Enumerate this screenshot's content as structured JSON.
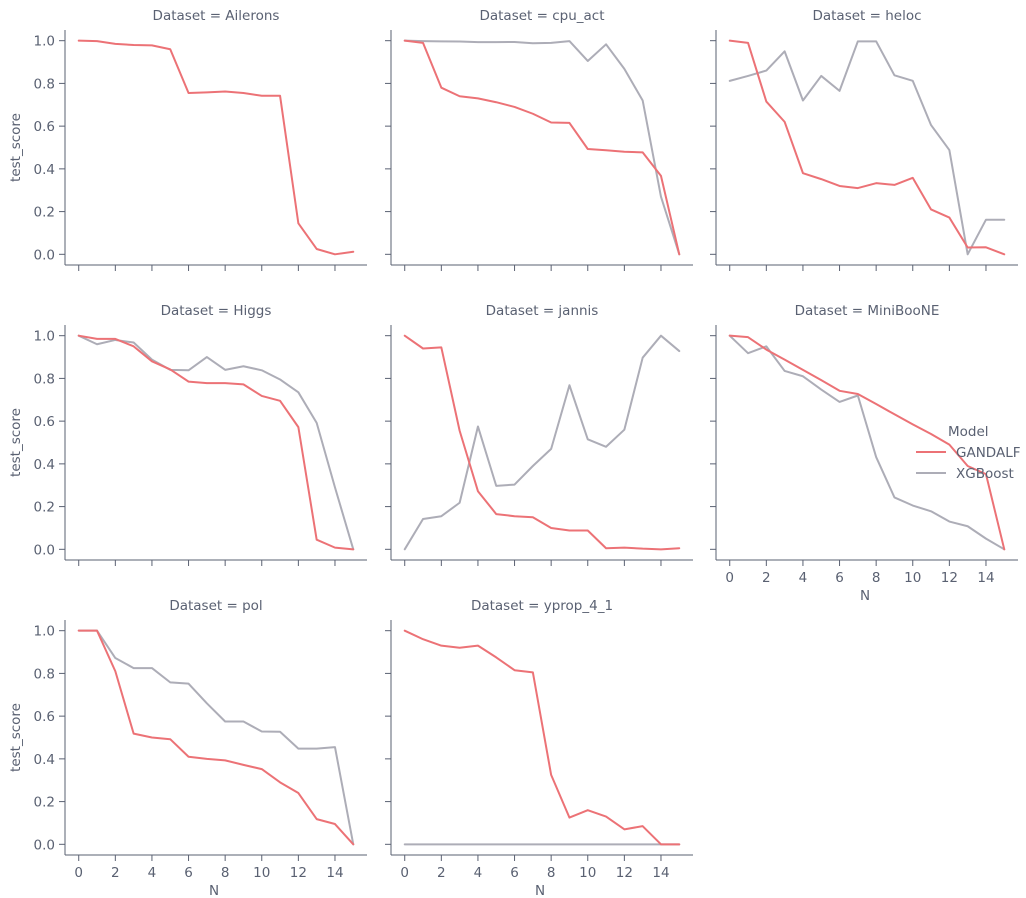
{
  "figure": {
    "legend_title": "Model",
    "legend_placement": "right",
    "colors": {
      "GANDALF": "#ec7276",
      "XGBoost": "#adadb7",
      "axis": "#5a6172"
    }
  },
  "chart_data": {
    "type": "line",
    "facet_by": "Dataset",
    "xlabel": "N",
    "ylabel": "test_score",
    "xlim": [
      -0.75,
      15.75
    ],
    "ylim": [
      -0.05,
      1.05
    ],
    "xticks": [
      "0",
      "2",
      "4",
      "6",
      "8",
      "10",
      "12",
      "14"
    ],
    "yticks": [
      "0.0",
      "0.2",
      "0.4",
      "0.6",
      "0.8",
      "1.0"
    ],
    "x": [
      0,
      1,
      2,
      3,
      4,
      5,
      6,
      7,
      8,
      9,
      10,
      11,
      12,
      13,
      14,
      15
    ],
    "panels": [
      {
        "title": "Dataset = Ailerons",
        "series": [
          {
            "name": "GANDALF",
            "values": [
              1.0,
              0.998,
              0.985,
              0.98,
              0.978,
              0.96,
              0.755,
              0.758,
              0.762,
              0.755,
              0.742,
              0.742,
              0.145,
              0.025,
              0.0,
              0.012
            ]
          }
        ]
      },
      {
        "title": "Dataset = cpu_act",
        "series": [
          {
            "name": "GANDALF",
            "values": [
              1.0,
              0.99,
              0.78,
              0.74,
              0.73,
              0.712,
              0.69,
              0.658,
              0.617,
              0.615,
              0.493,
              0.487,
              0.48,
              0.477,
              0.367,
              0.0
            ]
          },
          {
            "name": "XGBoost",
            "values": [
              1.0,
              0.998,
              0.997,
              0.996,
              0.993,
              0.993,
              0.994,
              0.988,
              0.99,
              0.998,
              0.905,
              0.983,
              0.868,
              0.72,
              0.27,
              0.0
            ]
          }
        ]
      },
      {
        "title": "Dataset = heloc",
        "series": [
          {
            "name": "GANDALF",
            "values": [
              1.0,
              0.99,
              0.715,
              0.62,
              0.38,
              0.352,
              0.32,
              0.31,
              0.333,
              0.325,
              0.358,
              0.21,
              0.172,
              0.032,
              0.033,
              0.0
            ]
          },
          {
            "name": "XGBoost",
            "values": [
              0.812,
              0.835,
              0.86,
              0.95,
              0.72,
              0.835,
              0.765,
              0.997,
              0.997,
              0.838,
              0.812,
              0.605,
              0.488,
              0.0,
              0.162,
              0.162
            ]
          }
        ]
      },
      {
        "title": "Dataset = Higgs",
        "series": [
          {
            "name": "GANDALF",
            "values": [
              1.0,
              0.985,
              0.985,
              0.95,
              0.88,
              0.842,
              0.785,
              0.778,
              0.778,
              0.772,
              0.718,
              0.695,
              0.572,
              0.045,
              0.008,
              0.0
            ]
          },
          {
            "name": "XGBoost",
            "values": [
              1.0,
              0.96,
              0.98,
              0.968,
              0.888,
              0.84,
              0.838,
              0.9,
              0.84,
              0.857,
              0.838,
              0.795,
              0.735,
              0.592,
              0.29,
              0.0
            ]
          }
        ]
      },
      {
        "title": "Dataset = jannis",
        "series": [
          {
            "name": "GANDALF",
            "values": [
              1.0,
              0.94,
              0.945,
              0.555,
              0.272,
              0.165,
              0.155,
              0.15,
              0.1,
              0.088,
              0.088,
              0.005,
              0.008,
              0.003,
              0.0,
              0.005
            ]
          },
          {
            "name": "XGBoost",
            "values": [
              0.0,
              0.142,
              0.155,
              0.218,
              0.575,
              0.297,
              0.303,
              0.39,
              0.47,
              0.768,
              0.515,
              0.48,
              0.56,
              0.897,
              1.0,
              0.928
            ]
          }
        ]
      },
      {
        "title": "Dataset = MiniBooNE",
        "series": [
          {
            "name": "GANDALF",
            "values": [
              1.0,
              0.993,
              0.935,
              0.888,
              0.84,
              0.792,
              0.742,
              0.727,
              0.68,
              0.632,
              0.585,
              0.54,
              0.49,
              0.39,
              0.352,
              0.0
            ]
          },
          {
            "name": "XGBoost",
            "values": [
              1.0,
              0.918,
              0.95,
              0.835,
              0.81,
              0.748,
              0.69,
              0.72,
              0.432,
              0.243,
              0.205,
              0.178,
              0.13,
              0.108,
              0.05,
              0.0
            ]
          }
        ]
      },
      {
        "title": "Dataset = pol",
        "series": [
          {
            "name": "GANDALF",
            "values": [
              1.0,
              1.0,
              0.81,
              0.518,
              0.5,
              0.492,
              0.41,
              0.4,
              0.393,
              0.372,
              0.352,
              0.29,
              0.24,
              0.118,
              0.095,
              0.0
            ]
          },
          {
            "name": "XGBoost",
            "values": [
              1.0,
              1.0,
              0.872,
              0.825,
              0.825,
              0.758,
              0.752,
              0.66,
              0.575,
              0.575,
              0.528,
              0.527,
              0.448,
              0.448,
              0.455,
              0.0
            ]
          }
        ]
      },
      {
        "title": "Dataset = yprop_4_1",
        "series": [
          {
            "name": "GANDALF",
            "values": [
              1.0,
              0.96,
              0.93,
              0.92,
              0.93,
              0.875,
              0.815,
              0.805,
              0.325,
              0.125,
              0.16,
              0.13,
              0.07,
              0.085,
              0.0,
              0.0
            ]
          },
          {
            "name": "XGBoost",
            "values": [
              0.0,
              0.0,
              0.0,
              0.0,
              0.0,
              0.0,
              0.0,
              0.0,
              0.0,
              0.0,
              0.0,
              0.0,
              0.0,
              0.0,
              0.0,
              0.0
            ]
          }
        ]
      }
    ],
    "legend": [
      "GANDALF",
      "XGBoost"
    ]
  }
}
